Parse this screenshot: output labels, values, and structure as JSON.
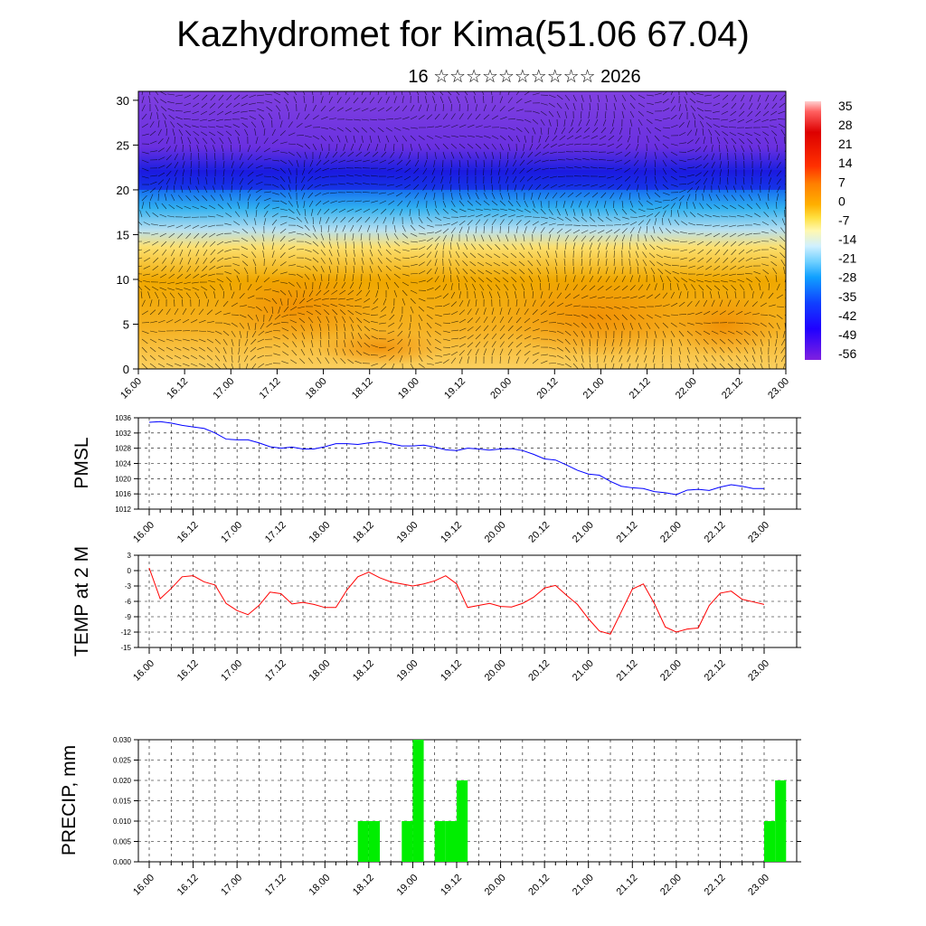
{
  "title": "Kazhydromet for Kima(51.06 67.04)",
  "subtitle": "16 ☆☆☆☆☆☆☆☆☆☆ 2026",
  "time_labels": [
    "16.00",
    "16.12",
    "17.00",
    "17.12",
    "18.00",
    "18.12",
    "19.00",
    "19.12",
    "20.00",
    "20.12",
    "21.00",
    "21.12",
    "22.00",
    "22.12",
    "23.00"
  ],
  "chart_data": [
    {
      "type": "heatmap",
      "title": "",
      "xlabel": "",
      "ylabel": "",
      "x": [
        "16.00",
        "16.12",
        "17.00",
        "17.12",
        "18.00",
        "18.12",
        "19.00",
        "19.12",
        "20.00",
        "20.12",
        "21.00",
        "21.12",
        "22.00",
        "22.12",
        "23.00"
      ],
      "yticks": [
        0,
        5,
        10,
        15,
        20,
        25,
        30
      ],
      "ylim": [
        0,
        31
      ],
      "colorbar_labels": [
        "35",
        "28",
        "21",
        "14",
        "7",
        "0",
        "-7",
        "-14",
        "-21",
        "-28",
        "-35",
        "-42",
        "-49",
        "-56"
      ],
      "colors": {
        "warm": "#f0a000",
        "mild": "#fde070",
        "cold": "#3050ff",
        "upper": "#7a40e0",
        "max": "#cc0000"
      },
      "overlay": "wind-vectors"
    },
    {
      "type": "line",
      "ylabel": "PMSL",
      "ylim": [
        1012,
        1036
      ],
      "yticks": [
        "1012",
        "1016",
        "1020",
        "1024",
        "1028",
        "1032",
        "1036"
      ],
      "color": "#0000ff",
      "values": [
        1034.8,
        1035.0,
        1034.6,
        1034.0,
        1033.6,
        1033.2,
        1032.0,
        1030.4,
        1030.2,
        1030.2,
        1029.4,
        1028.4,
        1028.0,
        1028.3,
        1027.8,
        1027.8,
        1028.4,
        1029.2,
        1029.2,
        1029.0,
        1029.4,
        1029.7,
        1029.2,
        1028.6,
        1028.6,
        1028.8,
        1028.3,
        1027.6,
        1027.4,
        1028.0,
        1027.8,
        1027.5,
        1027.8,
        1027.9,
        1027.4,
        1026.4,
        1025.2,
        1024.9,
        1023.6,
        1022.2,
        1021.2,
        1020.9,
        1019.3,
        1018.0,
        1017.6,
        1017.4,
        1016.6,
        1016.3,
        1015.8,
        1017.0,
        1017.2,
        1016.9,
        1017.8,
        1018.4,
        1018.0,
        1017.4,
        1017.4
      ]
    },
    {
      "type": "line",
      "ylabel": "TEMP at 2 M",
      "ylim": [
        -15,
        3
      ],
      "yticks": [
        "-15",
        "-12",
        "-9",
        "-6",
        "-3",
        "0",
        "3"
      ],
      "color": "#ff0000",
      "values": [
        0.5,
        -5.5,
        -3.5,
        -1.2,
        -1.0,
        -2.2,
        -2.8,
        -6.4,
        -7.8,
        -8.6,
        -6.8,
        -4.2,
        -4.5,
        -6.5,
        -6.2,
        -6.6,
        -7.2,
        -7.2,
        -3.8,
        -1.2,
        -0.3,
        -1.4,
        -2.2,
        -2.6,
        -3.0,
        -2.6,
        -2.0,
        -1.0,
        -2.6,
        -7.2,
        -6.8,
        -6.4,
        -7.0,
        -7.1,
        -6.4,
        -5.2,
        -3.4,
        -2.9,
        -4.8,
        -6.6,
        -9.4,
        -11.8,
        -12.4,
        -8.0,
        -3.6,
        -2.6,
        -6.4,
        -11.0,
        -12.0,
        -11.4,
        -11.2,
        -6.8,
        -4.4,
        -4.0,
        -5.6,
        -6.1,
        -6.6
      ]
    },
    {
      "type": "bar",
      "ylabel": "PRECIP, mm",
      "ylim": [
        0,
        0.03
      ],
      "yticks": [
        "0.000",
        "0.005",
        "0.010",
        "0.015",
        "0.020",
        "0.025",
        "0.030"
      ],
      "color": "#00ee00",
      "bars": [
        {
          "start": 19,
          "value": 0.01
        },
        {
          "start": 20,
          "value": 0.01
        },
        {
          "start": 23,
          "value": 0.01
        },
        {
          "start": 24,
          "value": 0.03
        },
        {
          "start": 26,
          "value": 0.01
        },
        {
          "start": 27,
          "value": 0.01
        },
        {
          "start": 28,
          "value": 0.02
        },
        {
          "start": 56,
          "value": 0.01
        },
        {
          "start": 57,
          "value": 0.02
        }
      ]
    }
  ]
}
